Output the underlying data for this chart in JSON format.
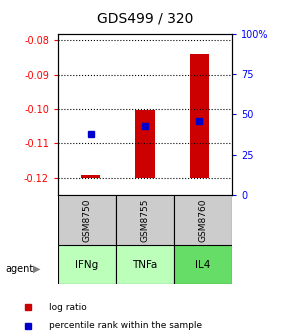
{
  "title": "GDS499 / 320",
  "samples": [
    "GSM8750",
    "GSM8755",
    "GSM8760"
  ],
  "agents": [
    "IFNg",
    "TNFa",
    "IL4"
  ],
  "log_ratios": [
    -0.1193,
    -0.1003,
    -0.0838
  ],
  "percentile_ranks": [
    38,
    43,
    46
  ],
  "bar_base": -0.12,
  "ylim_left": [
    -0.125,
    -0.078
  ],
  "ylim_right": [
    0,
    100
  ],
  "yticks_left": [
    -0.12,
    -0.11,
    -0.1,
    -0.09,
    -0.08
  ],
  "yticks_right": [
    0,
    25,
    50,
    75,
    100
  ],
  "bar_color": "#cc0000",
  "blue_color": "#0000cc",
  "agent_colors": [
    "#bbffbb",
    "#bbffbb",
    "#66dd66"
  ],
  "gsm_bg_color": "#cccccc",
  "legend_items": [
    "log ratio",
    "percentile rank within the sample"
  ],
  "legend_colors": [
    "#cc0000",
    "#0000cc"
  ]
}
